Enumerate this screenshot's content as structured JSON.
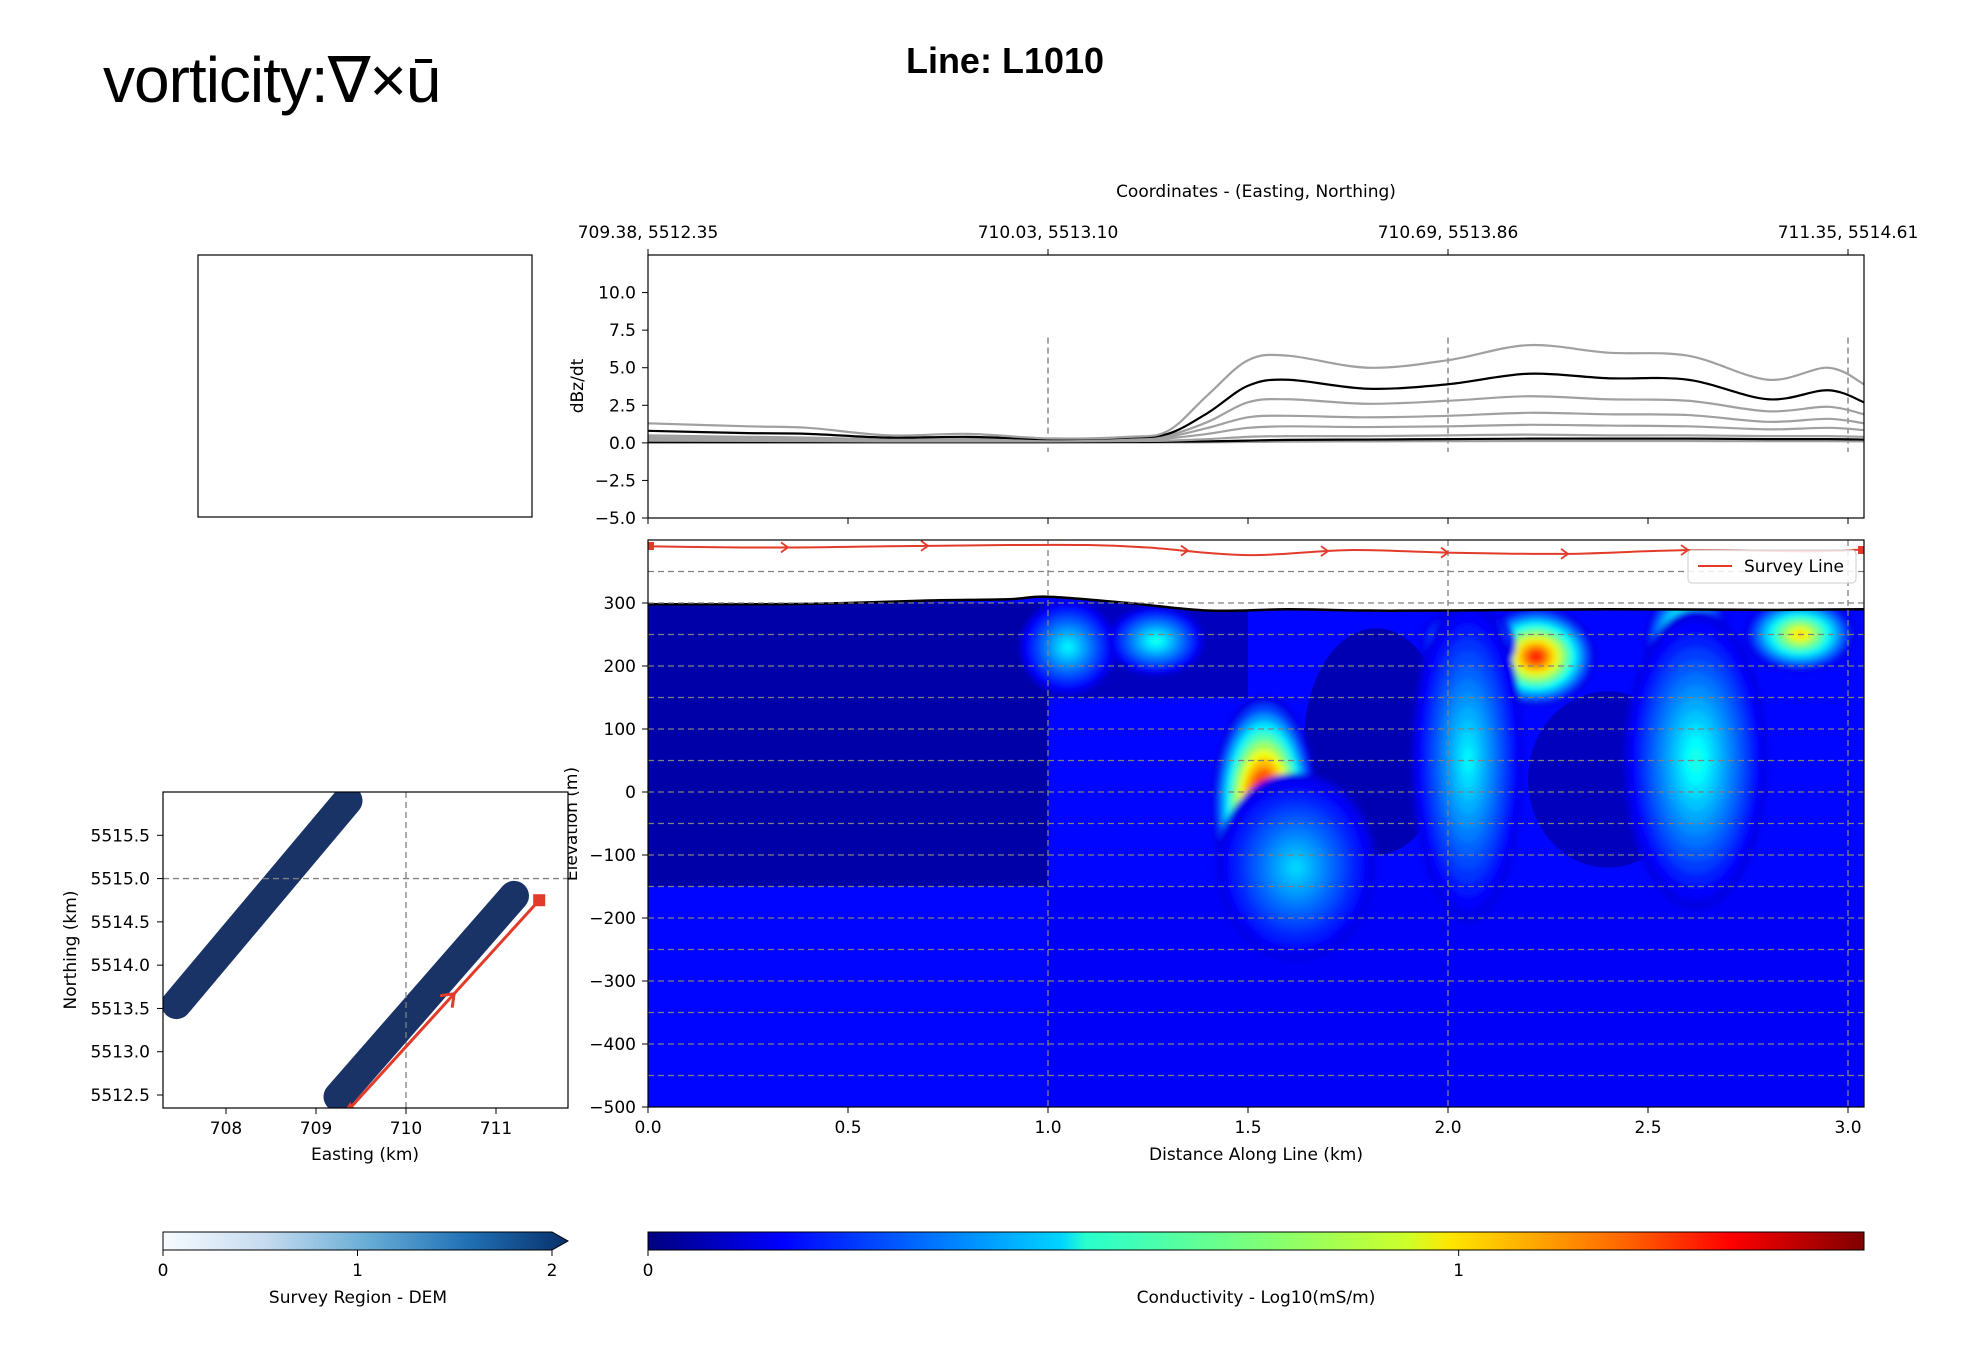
{
  "brand": "vorticity:∇×ū",
  "title": "Line: L1010",
  "colors": {
    "dem_fill": "#1a3367",
    "survey_line": "#e23b2a",
    "grid": "#808080"
  },
  "chart_data": [
    {
      "id": "decay",
      "type": "line",
      "ylabel": "dBz/dt",
      "top_axis_label": "Coordinates - (Easting, Northing)",
      "top_ticks": [
        {
          "x": 0.0,
          "label": "709.38, 5512.35"
        },
        {
          "x": 1.0,
          "label": "710.03, 5513.10"
        },
        {
          "x": 2.0,
          "label": "710.69, 5513.86"
        },
        {
          "x": 3.0,
          "label": "711.35, 5514.61"
        }
      ],
      "xlim": [
        0,
        3.04
      ],
      "ylim": [
        -5.0,
        12.5
      ],
      "yticks": [
        "10.0",
        "7.5",
        "5.0",
        "2.5",
        "0.0",
        "−2.5",
        "−5.0"
      ],
      "ytick_values": [
        10,
        7.5,
        5,
        2.5,
        0,
        -2.5,
        -5
      ],
      "x": [
        0,
        0.25,
        0.4,
        0.6,
        0.8,
        1.0,
        1.2,
        1.3,
        1.4,
        1.5,
        1.6,
        1.8,
        2.0,
        2.2,
        2.4,
        2.6,
        2.8,
        2.95,
        3.04
      ],
      "series": [
        {
          "color": "#a0a0a0",
          "values": [
            1.3,
            1.1,
            1.0,
            0.5,
            0.6,
            0.3,
            0.4,
            0.8,
            3.2,
            5.5,
            5.8,
            5.0,
            5.5,
            6.5,
            6.0,
            5.8,
            4.2,
            5.0,
            3.9
          ]
        },
        {
          "color": "#000000",
          "values": [
            0.8,
            0.65,
            0.6,
            0.35,
            0.4,
            0.25,
            0.35,
            0.6,
            2.0,
            3.8,
            4.2,
            3.6,
            3.9,
            4.6,
            4.3,
            4.2,
            2.9,
            3.5,
            2.7
          ]
        },
        {
          "color": "#a0a0a0",
          "values": [
            0.5,
            0.4,
            0.35,
            0.25,
            0.3,
            0.2,
            0.3,
            0.5,
            1.4,
            2.7,
            2.9,
            2.6,
            2.8,
            3.1,
            2.9,
            2.8,
            2.1,
            2.4,
            1.9
          ]
        },
        {
          "color": "#a0a0a0",
          "values": [
            0.35,
            0.3,
            0.28,
            0.2,
            0.22,
            0.18,
            0.25,
            0.4,
            1.0,
            1.7,
            1.8,
            1.7,
            1.8,
            2.0,
            1.9,
            1.85,
            1.4,
            1.6,
            1.3
          ]
        },
        {
          "color": "#a0a0a0",
          "values": [
            0.25,
            0.22,
            0.2,
            0.15,
            0.17,
            0.14,
            0.2,
            0.3,
            0.6,
            1.0,
            1.1,
            1.05,
            1.1,
            1.2,
            1.15,
            1.1,
            0.9,
            1.0,
            0.85
          ]
        },
        {
          "color": "#a0a0a0",
          "values": [
            0.15,
            0.13,
            0.12,
            0.1,
            0.1,
            0.1,
            0.12,
            0.15,
            0.25,
            0.4,
            0.45,
            0.45,
            0.5,
            0.55,
            0.5,
            0.5,
            0.45,
            0.45,
            0.4
          ]
        },
        {
          "color": "#000000",
          "values": [
            0.05,
            0.05,
            0.05,
            0.05,
            0.05,
            0.05,
            0.06,
            0.07,
            0.1,
            0.15,
            0.2,
            0.22,
            0.25,
            0.28,
            0.28,
            0.28,
            0.25,
            0.25,
            0.22
          ]
        },
        {
          "color": "#a0a0a0",
          "values": [
            0.02,
            0.02,
            0.02,
            0.02,
            0.02,
            0.02,
            0.02,
            0.03,
            0.04,
            0.06,
            0.08,
            0.1,
            0.11,
            0.12,
            0.12,
            0.12,
            0.11,
            0.11,
            0.1
          ]
        }
      ],
      "vlines": [
        1.0,
        2.0,
        3.0
      ]
    },
    {
      "id": "section",
      "type": "heatmap",
      "xlabel": "Distance Along Line (km)",
      "ylabel": "Elevation (m)",
      "xlim": [
        0,
        3.04
      ],
      "ylim": [
        -500,
        400
      ],
      "xticks": [
        "0.0",
        "0.5",
        "1.0",
        "1.5",
        "2.0",
        "2.5",
        "3.0"
      ],
      "xtick_values": [
        0,
        0.5,
        1.0,
        1.5,
        2.0,
        2.5,
        3.0
      ],
      "yticks": [
        "300",
        "200",
        "100",
        "0",
        "−100",
        "−200",
        "−300",
        "−400",
        "−500"
      ],
      "ytick_values": [
        300,
        200,
        100,
        0,
        -100,
        -200,
        -300,
        -400,
        -500
      ],
      "hgrid": [
        350,
        300,
        250,
        200,
        150,
        100,
        50,
        0,
        -50,
        -100,
        -150,
        -200,
        -250,
        -300,
        -350,
        -400,
        -450
      ],
      "vgrid": [
        1.0,
        2.0,
        3.0
      ],
      "terrain": {
        "x": [
          0,
          0.3,
          0.5,
          0.7,
          0.9,
          1.0,
          1.2,
          1.4,
          1.6,
          1.8,
          2.0,
          2.4,
          2.8,
          3.04
        ],
        "y": [
          298,
          298,
          300,
          304,
          306,
          310,
          300,
          288,
          290,
          288,
          288,
          290,
          289,
          290
        ]
      },
      "survey_line": {
        "name": "Survey Line",
        "x": [
          0,
          0.3,
          0.6,
          0.9,
          1.1,
          1.25,
          1.5,
          1.75,
          2.0,
          2.3,
          2.6,
          2.9,
          3.04
        ],
        "y": [
          390,
          388,
          390,
          392,
          392,
          388,
          376,
          384,
          380,
          378,
          384,
          382,
          385
        ]
      },
      "legend": {
        "label": "Survey Line",
        "placement": "top-right"
      },
      "anomalies": [
        {
          "x": 1.54,
          "y": -20,
          "rx": 0.13,
          "ry": 175,
          "v": 1.55
        },
        {
          "x": 1.05,
          "y": 230,
          "rx": 0.12,
          "ry": 75,
          "v": 0.55
        },
        {
          "x": 1.27,
          "y": 240,
          "rx": 0.12,
          "ry": 55,
          "v": 0.6
        },
        {
          "x": 2.22,
          "y": 215,
          "rx": 0.15,
          "ry": 80,
          "v": 1.3
        },
        {
          "x": 2.05,
          "y": 235,
          "rx": 0.12,
          "ry": 60,
          "v": 0.9
        },
        {
          "x": 2.6,
          "y": 225,
          "rx": 0.11,
          "ry": 110,
          "v": 1.15
        },
        {
          "x": 2.62,
          "y": 50,
          "rx": 0.18,
          "ry": 240,
          "v": 0.6
        },
        {
          "x": 2.88,
          "y": 250,
          "rx": 0.14,
          "ry": 60,
          "v": 1.0
        },
        {
          "x": 2.05,
          "y": 50,
          "rx": 0.14,
          "ry": 260,
          "v": 0.55
        },
        {
          "x": 1.62,
          "y": -120,
          "rx": 0.2,
          "ry": 150,
          "v": 0.5
        }
      ]
    },
    {
      "id": "map",
      "type": "scatter",
      "xlabel": "Easting (km)",
      "ylabel": "Northing (km)",
      "xlim": [
        707.3,
        711.8
      ],
      "ylim": [
        5512.35,
        5516.0
      ],
      "xticks": [
        "708",
        "709",
        "710",
        "711"
      ],
      "xtick_values": [
        708,
        709,
        710,
        711
      ],
      "yticks": [
        "5515.5",
        "5515.0",
        "5514.5",
        "5514.0",
        "5513.5",
        "5513.0",
        "5512.5"
      ],
      "ytick_values": [
        5515.5,
        5515.0,
        5514.5,
        5514.0,
        5513.5,
        5513.0,
        5512.5
      ],
      "vline": 710.0,
      "hline": 5515.0,
      "dem_strips": [
        {
          "x1": 707.45,
          "y1": 5513.55,
          "x2": 709.35,
          "y2": 5515.9
        },
        {
          "x1": 709.25,
          "y1": 5512.48,
          "x2": 711.2,
          "y2": 5514.8
        }
      ],
      "survey_line": {
        "x1": 709.38,
        "y1": 5512.35,
        "x2": 711.48,
        "y2": 5514.75
      }
    }
  ],
  "colorbars": {
    "dem": {
      "label": "Survey Region - DEM",
      "ticks": [
        "0",
        "1",
        "2"
      ]
    },
    "conductivity": {
      "label": "Conductivity - Log10(mS/m)",
      "ticks": [
        "0",
        "1"
      ],
      "range": [
        0,
        1.5
      ]
    }
  }
}
